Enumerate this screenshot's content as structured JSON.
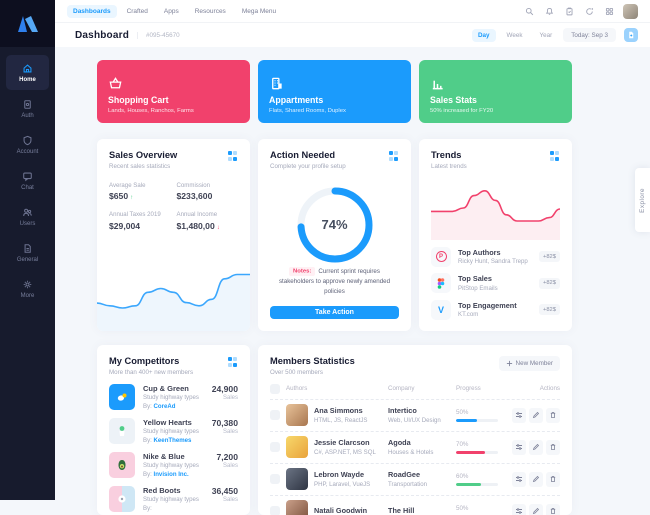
{
  "navbar": {
    "menu": [
      {
        "label": "Dashboards",
        "active": true
      },
      {
        "label": "Crafted",
        "active": false
      },
      {
        "label": "Apps",
        "active": false
      },
      {
        "label": "Resources",
        "active": false
      },
      {
        "label": "Mega Menu",
        "active": false
      }
    ]
  },
  "toolbar": {
    "title": "Dashboard",
    "doc_id": "#095-45670",
    "ranges": [
      "Day",
      "Week",
      "Year"
    ],
    "active_range": "Day",
    "today": "Today: Sep 3"
  },
  "sidebar": {
    "items": [
      {
        "label": "Home",
        "active": true
      },
      {
        "label": "Auth",
        "active": false
      },
      {
        "label": "Account",
        "active": false
      },
      {
        "label": "Chat",
        "active": false
      },
      {
        "label": "Users",
        "active": false
      },
      {
        "label": "General",
        "active": false
      },
      {
        "label": "More",
        "active": false
      }
    ]
  },
  "stat_cards": [
    {
      "title": "Shopping Cart",
      "subtitle": "Lands, Houses, Ranchos, Farms",
      "color": "#f1416c"
    },
    {
      "title": "Appartments",
      "subtitle": "Flats, Shared Rooms, Duplex",
      "color": "#1b9bfc"
    },
    {
      "title": "Sales Stats",
      "subtitle": "50% increased for FY20",
      "color": "#50cd89"
    }
  ],
  "sales_overview": {
    "title": "Sales Overview",
    "subtitle": "Recent sales statistics",
    "stats": [
      {
        "label": "Average Sale",
        "value": "$650",
        "arrow": "↑"
      },
      {
        "label": "Commission",
        "value": "$233,600",
        "arrow": ""
      },
      {
        "label": "Annual Taxes 2019",
        "value": "$29,004",
        "arrow": ""
      },
      {
        "label": "Annual Income",
        "value": "$1,480,00",
        "arrow": "↓"
      }
    ],
    "chart": {
      "type": "line",
      "color": "#3ba7fd",
      "values": [
        0.35,
        0.3,
        0.26,
        0.3,
        0.55,
        0.62,
        0.55,
        0.36,
        0.3,
        0.42,
        0.8,
        0.88,
        0.88
      ]
    }
  },
  "action_needed": {
    "title": "Action Needed",
    "subtitle": "Complete your profile setup",
    "percent": 74,
    "percent_label": "74%",
    "notes_label": "Notes:",
    "notes_text": "Current sprint requires stakeholders to approve newly amended policies",
    "button": "Take Action"
  },
  "trends": {
    "title": "Trends",
    "subtitle": "Latest trends",
    "chart": {
      "type": "line",
      "color": "#f1416c",
      "values": [
        0.45,
        0.45,
        0.45,
        0.52,
        0.78,
        0.88,
        0.68,
        0.38,
        0.25,
        0.25,
        0.25,
        0.32,
        0.5
      ]
    },
    "items": [
      {
        "name": "Top Authors",
        "subtitle": "Ricky Hunt, Sandra Trepp",
        "badge": "+82$",
        "brand_glyph": "P"
      },
      {
        "name": "Top Sales",
        "subtitle": "PitStop Emails",
        "badge": "+82$",
        "brand_glyph": ""
      },
      {
        "name": "Top Engagement",
        "subtitle": "KT.com",
        "badge": "+82$",
        "brand_glyph": "V"
      }
    ]
  },
  "competitors": {
    "title": "My Competitors",
    "subtitle": "More than 400+ new members",
    "by_label": "By:",
    "items": [
      {
        "name": "Cup & Green",
        "desc": "Study highway types",
        "by": "CoreAd",
        "value": "24,900",
        "unit": "Sales"
      },
      {
        "name": "Yellow Hearts",
        "desc": "Study highway types",
        "by": "KeenThemes",
        "value": "70,380",
        "unit": "Sales"
      },
      {
        "name": "Nike & Blue",
        "desc": "Study highway types",
        "by": "Invision Inc.",
        "value": "7,200",
        "unit": "Sales"
      },
      {
        "name": "Red Boots",
        "desc": "Study highway types",
        "by": "",
        "value": "36,450",
        "unit": "Sales"
      }
    ]
  },
  "members": {
    "title": "Members Statistics",
    "subtitle": "Over 500 members",
    "new_member_button": "New Member",
    "headers": [
      "Authors",
      "Company",
      "Progress",
      "Actions"
    ],
    "rows": [
      {
        "name": "Ana Simmons",
        "skills": "HTML, JS, ReactJS",
        "company": "Intertico",
        "industry": "Web, UI/UX Design",
        "progress": "50%",
        "bar_color": "#1b9bfc"
      },
      {
        "name": "Jessie Clarcson",
        "skills": "C#, ASP.NET, MS SQL",
        "company": "Agoda",
        "industry": "Houses & Hotels",
        "progress": "70%",
        "bar_color": "#f1416c"
      },
      {
        "name": "Lebron Wayde",
        "skills": "PHP, Laravel, VueJS",
        "company": "RoadGee",
        "industry": "Transportation",
        "progress": "60%",
        "bar_color": "#50cd89"
      },
      {
        "name": "Natali Goodwin",
        "skills": "",
        "company": "The Hill",
        "industry": "",
        "progress": "50%",
        "bar_color": "#1b9bfc"
      }
    ]
  },
  "explore_label": "Explore"
}
